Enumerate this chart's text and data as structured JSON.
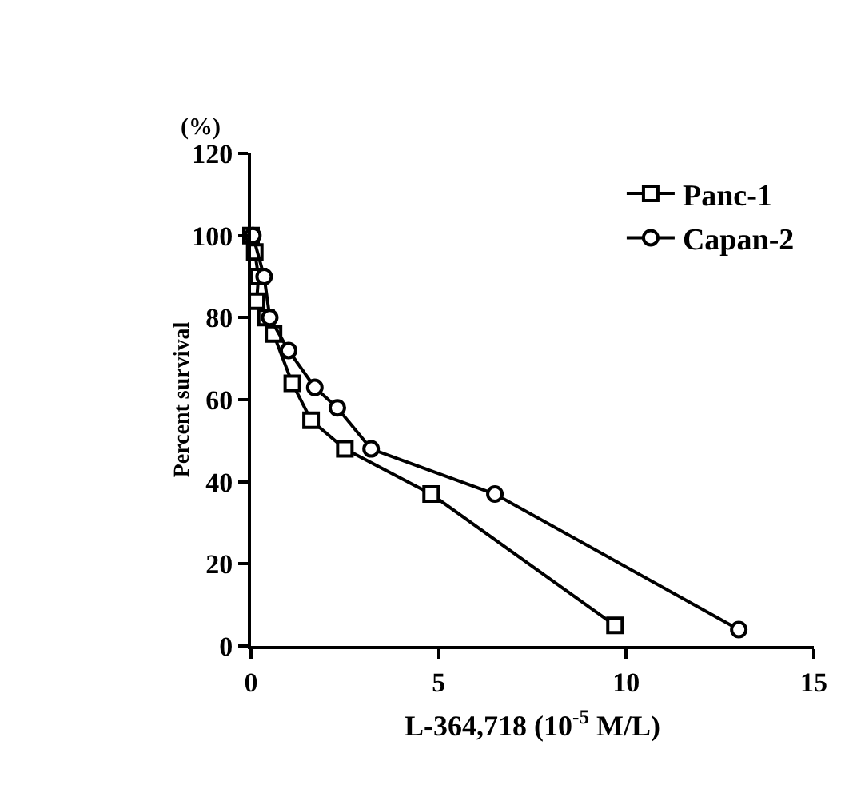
{
  "chart_data": {
    "type": "line",
    "xlabel": "L-364,718 (10$^{-5}$ M/L)",
    "ylabel": "Percent survival",
    "annotations": [
      "(%)"
    ],
    "xlim": [
      0,
      15
    ],
    "xticks": [
      0,
      5,
      10,
      15
    ],
    "ylim": [
      0,
      120
    ],
    "yticks": [
      0,
      20,
      40,
      60,
      80,
      100,
      120
    ],
    "grid": false,
    "legend": "top right",
    "series": [
      {
        "name": "Panc-1",
        "color": "#000000",
        "marker": "square",
        "x": [
          0,
          0.1,
          0.2,
          0.15,
          0.4,
          0.6,
          1.1,
          1.6,
          2.5,
          4.8,
          9.7
        ],
        "values": [
          100,
          96,
          90,
          84,
          80,
          76,
          64,
          55,
          48,
          37,
          5
        ]
      },
      {
        "name": "Capan-2",
        "color": "#000000",
        "marker": "circle",
        "x": [
          0.05,
          0.35,
          0.5,
          1.0,
          1.7,
          2.3,
          3.2,
          6.5,
          13.0
        ],
        "values": [
          100,
          90,
          80,
          72,
          63,
          58,
          48,
          37,
          4
        ]
      }
    ]
  }
}
